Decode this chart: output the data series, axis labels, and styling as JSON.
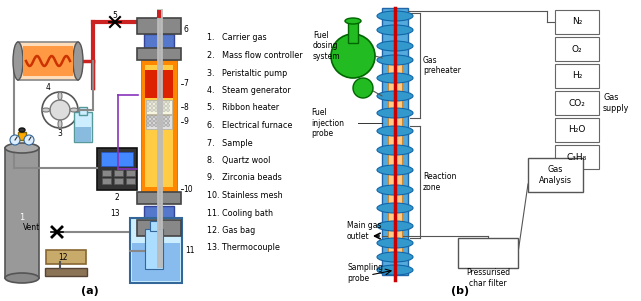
{
  "bg_color": "#ffffff",
  "legend_items": [
    "1.   Carrier gas",
    "2.   Mass flow controller",
    "3.   Peristaltic pump",
    "4.   Steam generator",
    "5.   Ribbon heater",
    "6.   Electrical furnace",
    "7.   Sample",
    "8.   Quartz wool",
    "9.   Zirconia beads",
    "10. Stainless mesh",
    "11. Cooling bath",
    "12. Gas bag",
    "13. Thermocouple"
  ],
  "gas_supply_labels": [
    "N₂",
    "O₂",
    "H₂",
    "CO₂",
    "H₂O",
    "C₃H₈"
  ],
  "label_a": "(a)",
  "label_b": "(b)",
  "gas_preheater_label": "Gas\npreheater",
  "reaction_zone_label": "Reaction\nzone",
  "gas_analysis_label": "Gas\nAnalysis",
  "pressurised_char_filter_label": "Pressurised\nchar filter",
  "gas_supply_group_label": "Gas\nsupply",
  "fuel_dosing_system_label": "Fuel\ndosing\nsystem",
  "fuel_injection_probe_label": "Fuel\ninjection\nprobe",
  "main_gas_outlet_label": "Main gas\noutlet",
  "sampling_probe_label": "Sampling\nprobe",
  "vent_label": "Vent"
}
